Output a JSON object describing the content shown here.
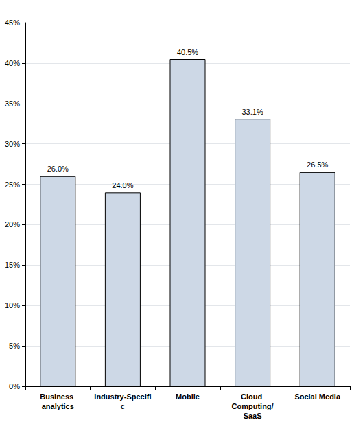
{
  "chart_data": {
    "type": "bar",
    "categories": [
      "Business analytics",
      "Industry-Specific",
      "Mobile",
      "Cloud Computing/SaaS",
      "Social Media"
    ],
    "values": [
      26.0,
      24.0,
      40.5,
      33.1,
      26.5
    ],
    "value_labels": [
      "26.0%",
      "24.0%",
      "40.5%",
      "33.1%",
      "26.5%"
    ],
    "data_labels": true,
    "color": "#cdd8e6",
    "ylim": [
      0,
      45
    ],
    "yticks": [
      {
        "value": 0,
        "label": "0%"
      },
      {
        "value": 5,
        "label": "5%"
      },
      {
        "value": 10,
        "label": "10%"
      },
      {
        "value": 15,
        "label": "15%"
      },
      {
        "value": 20,
        "label": "20%"
      },
      {
        "value": 25,
        "label": "25%"
      },
      {
        "value": 30,
        "label": "30%"
      },
      {
        "value": 35,
        "label": "35%"
      },
      {
        "value": 40,
        "label": "40%"
      },
      {
        "value": 45,
        "label": "45%"
      }
    ],
    "grid": true
  }
}
